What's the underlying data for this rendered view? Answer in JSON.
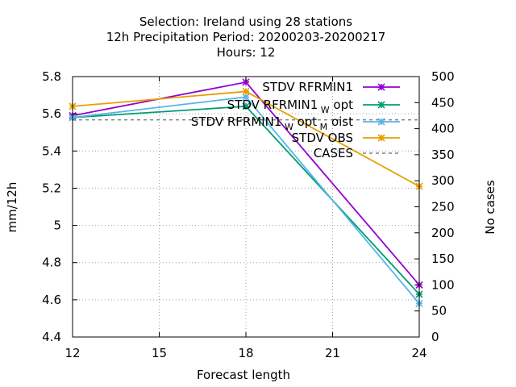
{
  "chart_data": {
    "type": "line",
    "title_lines": [
      "Selection: Ireland using    28 stations",
      "12h Precipitation    Period: 20200203-20200217",
      "Hours:  12"
    ],
    "xlabel": "Forecast length",
    "ylabel": "mm/12h",
    "y2label": "No cases",
    "xlim": [
      12,
      24
    ],
    "ylim": [
      4.4,
      5.8
    ],
    "y2lim": [
      0,
      500
    ],
    "xticks": [
      12,
      15,
      18,
      21,
      24
    ],
    "yticks": [
      "4.4",
      "4.6",
      "4.8",
      "5",
      "5.2",
      "5.4",
      "5.6",
      "5.8"
    ],
    "y2ticks": [
      0,
      50,
      100,
      150,
      200,
      250,
      300,
      350,
      400,
      450,
      500
    ],
    "grid": true,
    "legend_position": "top-right",
    "series": [
      {
        "name": "STDV RFRMIN1",
        "subscript": "",
        "suffix": "",
        "color": "#9400d3",
        "axis": "y1",
        "x": [
          12,
          18,
          24
        ],
        "values": [
          5.59,
          5.77,
          4.68
        ]
      },
      {
        "name": "STDV RFRMIN1",
        "subscript": "W",
        "suffix": "opt",
        "color": "#009e73",
        "axis": "y1",
        "x": [
          12,
          18,
          24
        ],
        "values": [
          5.58,
          5.64,
          4.63
        ]
      },
      {
        "name": "STDV RFRMIN1",
        "subscript": "W",
        "suffix": "opt",
        "subscript2": "M",
        "suffix2": "oist",
        "color": "#56b4e9",
        "axis": "y1",
        "x": [
          12,
          18,
          24
        ],
        "values": [
          5.58,
          5.69,
          4.58
        ]
      },
      {
        "name": "STDV OBS",
        "subscript": "",
        "suffix": "",
        "color": "#e69f00",
        "axis": "y1",
        "x": [
          12,
          18,
          24
        ],
        "values": [
          5.64,
          5.72,
          5.21
        ]
      },
      {
        "name": "CASES",
        "subscript": "",
        "suffix": "",
        "color": "#808080",
        "axis": "y2",
        "dashed": true,
        "x": [
          12,
          18,
          24
        ],
        "values": [
          417,
          417,
          417
        ]
      }
    ]
  }
}
